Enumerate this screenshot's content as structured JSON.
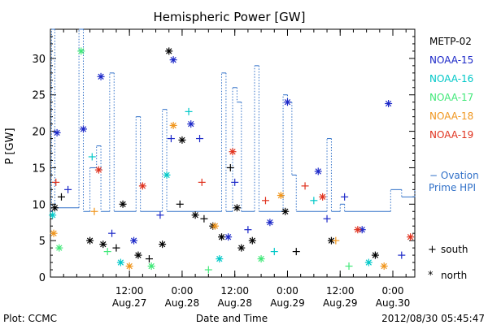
{
  "chart_data": {
    "type": "scatter",
    "title": "Hemispheric Power [GW]",
    "xlabel": "Date and Time",
    "ylabel": "P [GW]",
    "ylim": [
      0,
      34
    ],
    "xlim": [
      "2012-08-26 18:00",
      "2012-08-30 05:00"
    ],
    "y_ticks": [
      0,
      5,
      10,
      15,
      20,
      25,
      30
    ],
    "x_ticks": [
      {
        "x": "2012-08-27 12:00",
        "time": "12:00",
        "date": "Aug.27"
      },
      {
        "x": "2012-08-28 00:00",
        "time": "0:00",
        "date": "Aug.28"
      },
      {
        "x": "2012-08-28 12:00",
        "time": "12:00",
        "date": "Aug.28"
      },
      {
        "x": "2012-08-29 00:00",
        "time": "0:00",
        "date": "Aug.29"
      },
      {
        "x": "2012-08-29 12:00",
        "time": "12:00",
        "date": "Aug.29"
      },
      {
        "x": "2012-08-30 00:00",
        "time": "0:00",
        "date": "Aug.30"
      }
    ],
    "footer_left": "Plot: CCMC",
    "footer_right": "2012/08/30 05:45:47",
    "legend_position": "right",
    "series": [
      {
        "name": "METP-02",
        "color": "#000000",
        "points": [
          {
            "x": "2012-08-26 19:00",
            "y": 9.5,
            "hemi": "north"
          },
          {
            "x": "2012-08-26 20:30",
            "y": 11.0,
            "hemi": "south"
          },
          {
            "x": "2012-08-27 03:00",
            "y": 5.0,
            "hemi": "north"
          },
          {
            "x": "2012-08-27 06:00",
            "y": 4.5,
            "hemi": "north"
          },
          {
            "x": "2012-08-27 09:00",
            "y": 4.0,
            "hemi": "south"
          },
          {
            "x": "2012-08-27 10:30",
            "y": 10.0,
            "hemi": "north"
          },
          {
            "x": "2012-08-27 14:00",
            "y": 3.0,
            "hemi": "north"
          },
          {
            "x": "2012-08-27 16:30",
            "y": 2.5,
            "hemi": "south"
          },
          {
            "x": "2012-08-27 19:30",
            "y": 4.5,
            "hemi": "north"
          },
          {
            "x": "2012-08-27 21:00",
            "y": 31.0,
            "hemi": "north"
          },
          {
            "x": "2012-08-27 23:30",
            "y": 10.0,
            "hemi": "south"
          },
          {
            "x": "2012-08-28 00:00",
            "y": 18.8,
            "hemi": "north"
          },
          {
            "x": "2012-08-28 03:00",
            "y": 8.5,
            "hemi": "north"
          },
          {
            "x": "2012-08-28 05:00",
            "y": 8.0,
            "hemi": "south"
          },
          {
            "x": "2012-08-28 07:00",
            "y": 7.0,
            "hemi": "north"
          },
          {
            "x": "2012-08-28 09:00",
            "y": 5.5,
            "hemi": "north"
          },
          {
            "x": "2012-08-28 11:00",
            "y": 15.0,
            "hemi": "south"
          },
          {
            "x": "2012-08-28 12:30",
            "y": 9.5,
            "hemi": "north"
          },
          {
            "x": "2012-08-28 13:30",
            "y": 4.0,
            "hemi": "north"
          },
          {
            "x": "2012-08-28 16:00",
            "y": 5.0,
            "hemi": "north"
          },
          {
            "x": "2012-08-28 23:30",
            "y": 9.0,
            "hemi": "north"
          },
          {
            "x": "2012-08-29 02:00",
            "y": 3.5,
            "hemi": "south"
          },
          {
            "x": "2012-08-29 10:00",
            "y": 5.0,
            "hemi": "north"
          },
          {
            "x": "2012-08-29 20:00",
            "y": 3.0,
            "hemi": "north"
          }
        ]
      },
      {
        "name": "NOAA-15",
        "color": "#1c28c8",
        "points": [
          {
            "x": "2012-08-26 19:30",
            "y": 19.8,
            "hemi": "north"
          },
          {
            "x": "2012-08-26 22:00",
            "y": 12.0,
            "hemi": "south"
          },
          {
            "x": "2012-08-27 01:30",
            "y": 20.3,
            "hemi": "north"
          },
          {
            "x": "2012-08-27 05:30",
            "y": 27.5,
            "hemi": "north"
          },
          {
            "x": "2012-08-27 08:00",
            "y": 6.0,
            "hemi": "south"
          },
          {
            "x": "2012-08-27 13:00",
            "y": 5.0,
            "hemi": "north"
          },
          {
            "x": "2012-08-27 19:00",
            "y": 8.5,
            "hemi": "south"
          },
          {
            "x": "2012-08-27 21:30",
            "y": 19.0,
            "hemi": "south"
          },
          {
            "x": "2012-08-27 22:00",
            "y": 29.8,
            "hemi": "north"
          },
          {
            "x": "2012-08-28 02:00",
            "y": 21.0,
            "hemi": "north"
          },
          {
            "x": "2012-08-28 04:00",
            "y": 19.0,
            "hemi": "south"
          },
          {
            "x": "2012-08-28 10:30",
            "y": 5.5,
            "hemi": "north"
          },
          {
            "x": "2012-08-28 12:00",
            "y": 13.0,
            "hemi": "south"
          },
          {
            "x": "2012-08-28 15:00",
            "y": 6.5,
            "hemi": "south"
          },
          {
            "x": "2012-08-28 20:00",
            "y": 7.5,
            "hemi": "north"
          },
          {
            "x": "2012-08-29 00:00",
            "y": 24.0,
            "hemi": "north"
          },
          {
            "x": "2012-08-29 07:00",
            "y": 14.5,
            "hemi": "north"
          },
          {
            "x": "2012-08-29 09:00",
            "y": 8.0,
            "hemi": "south"
          },
          {
            "x": "2012-08-29 13:00",
            "y": 11.0,
            "hemi": "south"
          },
          {
            "x": "2012-08-29 17:00",
            "y": 6.5,
            "hemi": "north"
          },
          {
            "x": "2012-08-29 23:00",
            "y": 23.8,
            "hemi": "north"
          },
          {
            "x": "2012-08-30 02:00",
            "y": 3.0,
            "hemi": "south"
          }
        ]
      },
      {
        "name": "NOAA-16",
        "color": "#00c8c8",
        "points": [
          {
            "x": "2012-08-26 18:30",
            "y": 8.5,
            "hemi": "north"
          },
          {
            "x": "2012-08-27 03:30",
            "y": 16.5,
            "hemi": "south"
          },
          {
            "x": "2012-08-27 10:00",
            "y": 2.0,
            "hemi": "north"
          },
          {
            "x": "2012-08-27 20:30",
            "y": 14.0,
            "hemi": "north"
          },
          {
            "x": "2012-08-28 01:30",
            "y": 22.7,
            "hemi": "south"
          },
          {
            "x": "2012-08-28 08:30",
            "y": 2.5,
            "hemi": "north"
          },
          {
            "x": "2012-08-28 21:00",
            "y": 3.5,
            "hemi": "south"
          },
          {
            "x": "2012-08-29 06:00",
            "y": 10.5,
            "hemi": "south"
          },
          {
            "x": "2012-08-29 18:30",
            "y": 2.0,
            "hemi": "north"
          }
        ]
      },
      {
        "name": "NOAA-17",
        "color": "#40e878",
        "points": [
          {
            "x": "2012-08-26 20:00",
            "y": 4.0,
            "hemi": "north"
          },
          {
            "x": "2012-08-27 01:00",
            "y": 31.0,
            "hemi": "north"
          },
          {
            "x": "2012-08-27 07:00",
            "y": 3.5,
            "hemi": "south"
          },
          {
            "x": "2012-08-27 17:00",
            "y": 1.5,
            "hemi": "north"
          },
          {
            "x": "2012-08-28 06:00",
            "y": 1.0,
            "hemi": "south"
          },
          {
            "x": "2012-08-28 18:00",
            "y": 2.5,
            "hemi": "north"
          },
          {
            "x": "2012-08-29 14:00",
            "y": 1.5,
            "hemi": "south"
          }
        ]
      },
      {
        "name": "NOAA-18",
        "color": "#f0961e",
        "points": [
          {
            "x": "2012-08-26 18:45",
            "y": 6.0,
            "hemi": "north"
          },
          {
            "x": "2012-08-27 04:00",
            "y": 9.0,
            "hemi": "south"
          },
          {
            "x": "2012-08-27 12:00",
            "y": 1.5,
            "hemi": "north"
          },
          {
            "x": "2012-08-27 22:00",
            "y": 20.8,
            "hemi": "north"
          },
          {
            "x": "2012-08-28 07:30",
            "y": 7.0,
            "hemi": "north"
          },
          {
            "x": "2012-08-28 22:30",
            "y": 11.2,
            "hemi": "north"
          },
          {
            "x": "2012-08-29 11:00",
            "y": 5.0,
            "hemi": "south"
          },
          {
            "x": "2012-08-29 22:00",
            "y": 1.5,
            "hemi": "north"
          }
        ]
      },
      {
        "name": "NOAA-19",
        "color": "#e0321e",
        "points": [
          {
            "x": "2012-08-26 19:15",
            "y": 13.0,
            "hemi": "south"
          },
          {
            "x": "2012-08-27 05:00",
            "y": 14.7,
            "hemi": "north"
          },
          {
            "x": "2012-08-27 15:00",
            "y": 12.5,
            "hemi": "north"
          },
          {
            "x": "2012-08-28 04:30",
            "y": 13.0,
            "hemi": "south"
          },
          {
            "x": "2012-08-28 11:30",
            "y": 17.2,
            "hemi": "north"
          },
          {
            "x": "2012-08-28 19:00",
            "y": 10.5,
            "hemi": "south"
          },
          {
            "x": "2012-08-29 04:00",
            "y": 12.5,
            "hemi": "south"
          },
          {
            "x": "2012-08-29 08:00",
            "y": 11.0,
            "hemi": "north"
          },
          {
            "x": "2012-08-29 16:00",
            "y": 6.5,
            "hemi": "north"
          },
          {
            "x": "2012-08-30 04:00",
            "y": 5.5,
            "hemi": "north"
          }
        ]
      },
      {
        "name": "Ovation Prime HPI",
        "label_lines": [
          "− Ovation",
          "Prime HPI"
        ],
        "color": "#3070c8",
        "steps": [
          {
            "x": "2012-08-26 18:00",
            "y": 9.0
          },
          {
            "x": "2012-08-26 18:15",
            "y": 34.0
          },
          {
            "x": "2012-08-26 19:00",
            "y": 9.5
          },
          {
            "x": "2012-08-27 00:30",
            "y": 34.0
          },
          {
            "x": "2012-08-27 01:30",
            "y": 9.0
          },
          {
            "x": "2012-08-27 03:00",
            "y": 15.0
          },
          {
            "x": "2012-08-27 04:30",
            "y": 18.0
          },
          {
            "x": "2012-08-27 05:30",
            "y": 9.0
          },
          {
            "x": "2012-08-27 07:30",
            "y": 28.0
          },
          {
            "x": "2012-08-27 08:30",
            "y": 9.0
          },
          {
            "x": "2012-08-27 13:30",
            "y": 22.0
          },
          {
            "x": "2012-08-27 14:30",
            "y": 9.0
          },
          {
            "x": "2012-08-27 19:30",
            "y": 23.0
          },
          {
            "x": "2012-08-27 20:30",
            "y": 9.0
          },
          {
            "x": "2012-08-28 09:00",
            "y": 28.0
          },
          {
            "x": "2012-08-28 10:00",
            "y": 9.0
          },
          {
            "x": "2012-08-28 11:30",
            "y": 26.0
          },
          {
            "x": "2012-08-28 12:30",
            "y": 24.0
          },
          {
            "x": "2012-08-28 13:30",
            "y": 9.0
          },
          {
            "x": "2012-08-28 16:30",
            "y": 29.0
          },
          {
            "x": "2012-08-28 17:30",
            "y": 9.0
          },
          {
            "x": "2012-08-28 23:00",
            "y": 25.0
          },
          {
            "x": "2012-08-29 00:00",
            "y": 24.0
          },
          {
            "x": "2012-08-29 01:00",
            "y": 14.0
          },
          {
            "x": "2012-08-29 02:00",
            "y": 9.0
          },
          {
            "x": "2012-08-29 09:00",
            "y": 19.0
          },
          {
            "x": "2012-08-29 10:00",
            "y": 9.0
          },
          {
            "x": "2012-08-29 12:00",
            "y": 10.0
          },
          {
            "x": "2012-08-29 13:00",
            "y": 9.0
          },
          {
            "x": "2012-08-29 23:30",
            "y": 12.0
          },
          {
            "x": "2012-08-30 02:00",
            "y": 11.0
          },
          {
            "x": "2012-08-30 05:00",
            "y": 12.0
          }
        ]
      }
    ],
    "symbol_legend": [
      {
        "symbol": "+",
        "label": "south"
      },
      {
        "symbol": "*",
        "label": "north"
      }
    ]
  }
}
